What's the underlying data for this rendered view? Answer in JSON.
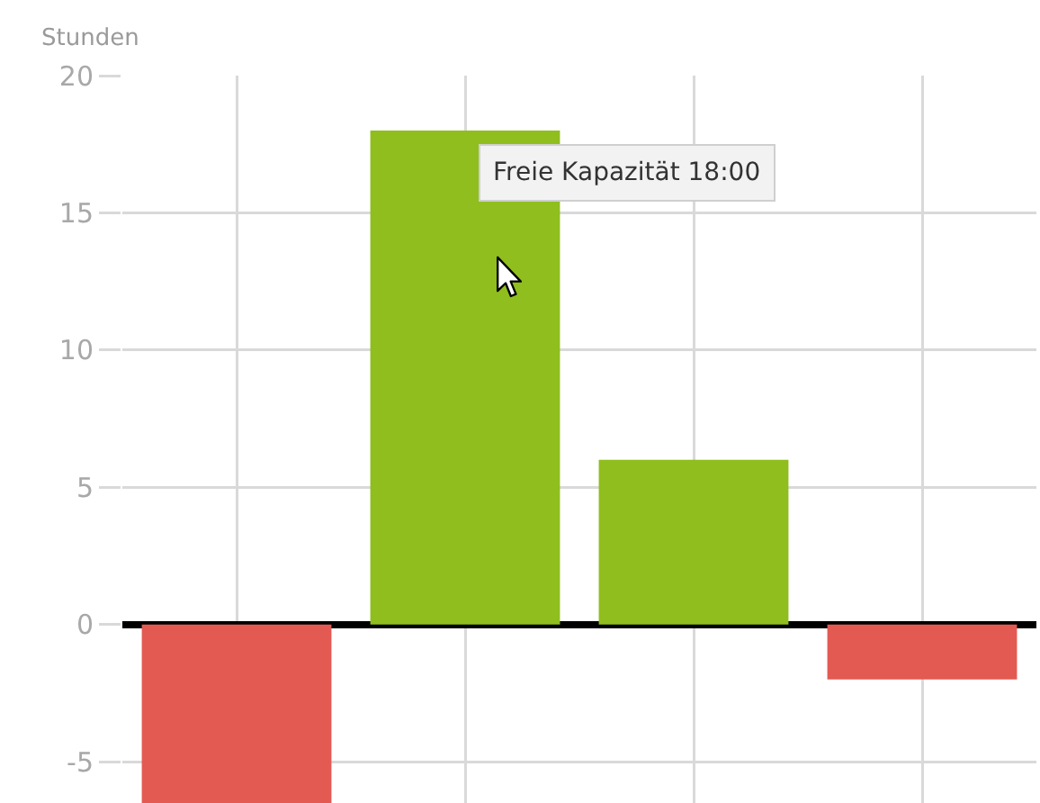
{
  "chart_data": {
    "type": "bar",
    "ylabel": "Stunden",
    "categories": [
      null,
      null,
      null,
      null
    ],
    "values": [
      -6.5,
      18,
      6,
      -2
    ],
    "colors": [
      "#e35a52",
      "#8fbe1e",
      "#8fbe1e",
      "#e35a52"
    ],
    "ylim": [
      -6.5,
      20
    ],
    "yticks": [
      -5,
      0,
      5,
      10,
      15,
      20
    ],
    "grid": true,
    "tick_labels": "y",
    "annotations": [
      "Freie Kapazität 18:00"
    ]
  }
}
